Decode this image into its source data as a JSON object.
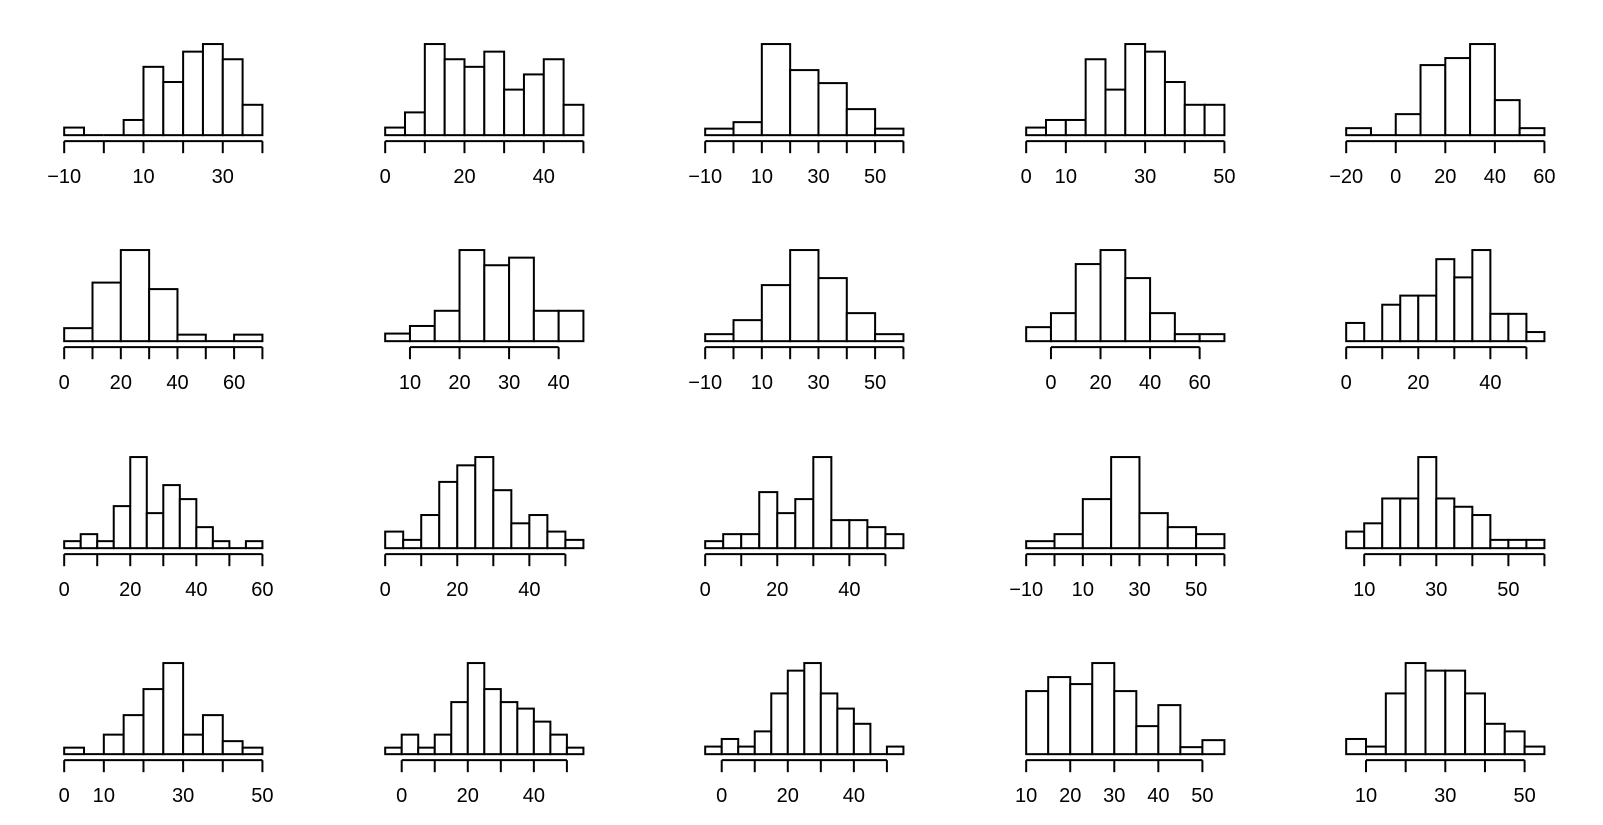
{
  "figure": {
    "background": "#ffffff",
    "bar_fill": "#ffffff",
    "bar_stroke": "#000000",
    "axis_color": "#000000",
    "text_color": "#000000"
  },
  "chart_data": {
    "type": "bar",
    "subtype": "histogram-small-multiples",
    "title": "",
    "xlabel": "",
    "ylabel": "",
    "grid": false,
    "legend": false,
    "rows": 4,
    "cols": 5,
    "histograms": [
      {
        "row": 1,
        "col": 1,
        "bin_start": -10,
        "bin_width": 5,
        "counts": [
          1,
          0,
          0,
          2,
          9,
          7,
          11,
          12,
          10,
          4
        ],
        "ticks": [
          -10,
          0,
          10,
          20,
          30,
          40
        ],
        "tick_labels": [
          "−10",
          "",
          "10",
          "",
          "30",
          ""
        ]
      },
      {
        "row": 1,
        "col": 2,
        "bin_start": 0,
        "bin_width": 5,
        "counts": [
          1,
          3,
          12,
          10,
          9,
          11,
          6,
          8,
          10,
          4
        ],
        "ticks": [
          0,
          10,
          20,
          30,
          40,
          50
        ],
        "tick_labels": [
          "0",
          "",
          "20",
          "",
          "40",
          ""
        ]
      },
      {
        "row": 1,
        "col": 3,
        "bin_start": -10,
        "bin_width": 10,
        "counts": [
          1,
          2,
          14,
          10,
          8,
          4,
          1
        ],
        "ticks": [
          -10,
          0,
          10,
          20,
          30,
          40,
          50,
          60
        ],
        "tick_labels": [
          "−10",
          "",
          "10",
          "",
          "30",
          "",
          "50",
          ""
        ]
      },
      {
        "row": 1,
        "col": 4,
        "bin_start": 0,
        "bin_width": 5,
        "counts": [
          1,
          2,
          2,
          10,
          6,
          12,
          11,
          7,
          4,
          4
        ],
        "ticks": [
          0,
          10,
          20,
          30,
          40,
          50
        ],
        "tick_labels": [
          "0",
          "10",
          "",
          "30",
          "",
          "50"
        ]
      },
      {
        "row": 1,
        "col": 5,
        "bin_start": -20,
        "bin_width": 10,
        "counts": [
          1,
          0,
          3,
          10,
          11,
          13,
          5,
          1
        ],
        "ticks": [
          -20,
          0,
          20,
          40,
          60
        ],
        "tick_labels": [
          "−20",
          "0",
          "20",
          "40",
          "60"
        ]
      },
      {
        "row": 2,
        "col": 1,
        "bin_start": 0,
        "bin_width": 10,
        "counts": [
          2,
          9,
          14,
          8,
          1,
          0,
          1
        ],
        "ticks": [
          0,
          10,
          20,
          30,
          40,
          50,
          60,
          70
        ],
        "tick_labels": [
          "0",
          "",
          "20",
          "",
          "40",
          "",
          "60",
          ""
        ]
      },
      {
        "row": 2,
        "col": 2,
        "bin_start": 5,
        "bin_width": 5,
        "counts": [
          1,
          2,
          4,
          12,
          10,
          11,
          4,
          4
        ],
        "ticks": [
          10,
          20,
          30,
          40
        ],
        "tick_labels": [
          "10",
          "20",
          "30",
          "40"
        ]
      },
      {
        "row": 2,
        "col": 3,
        "bin_start": -10,
        "bin_width": 10,
        "counts": [
          1,
          3,
          8,
          13,
          9,
          4,
          1
        ],
        "ticks": [
          -10,
          0,
          10,
          20,
          30,
          40,
          50,
          60
        ],
        "tick_labels": [
          "−10",
          "",
          "10",
          "",
          "30",
          "",
          "50",
          ""
        ]
      },
      {
        "row": 2,
        "col": 4,
        "bin_start": -10,
        "bin_width": 10,
        "counts": [
          2,
          4,
          11,
          13,
          9,
          4,
          1,
          1
        ],
        "ticks": [
          0,
          20,
          40,
          60
        ],
        "tick_labels": [
          "0",
          "20",
          "40",
          "60"
        ]
      },
      {
        "row": 2,
        "col": 5,
        "bin_start": 0,
        "bin_width": 5,
        "counts": [
          2,
          0,
          4,
          5,
          5,
          9,
          7,
          10,
          3,
          3,
          1
        ],
        "ticks": [
          0,
          10,
          20,
          30,
          40,
          50
        ],
        "tick_labels": [
          "0",
          "",
          "20",
          "",
          "40",
          ""
        ]
      },
      {
        "row": 3,
        "col": 1,
        "bin_start": 0,
        "bin_width": 5,
        "counts": [
          1,
          2,
          1,
          6,
          13,
          5,
          9,
          7,
          3,
          1,
          0,
          1
        ],
        "ticks": [
          0,
          10,
          20,
          30,
          40,
          50,
          60
        ],
        "tick_labels": [
          "0",
          "",
          "20",
          "",
          "40",
          "",
          "60"
        ]
      },
      {
        "row": 3,
        "col": 2,
        "bin_start": 0,
        "bin_width": 5,
        "counts": [
          2,
          1,
          4,
          8,
          10,
          11,
          7,
          3,
          4,
          2,
          1
        ],
        "ticks": [
          0,
          10,
          20,
          30,
          40,
          50
        ],
        "tick_labels": [
          "0",
          "",
          "20",
          "",
          "40",
          ""
        ]
      },
      {
        "row": 3,
        "col": 3,
        "bin_start": 0,
        "bin_width": 5,
        "counts": [
          1,
          2,
          2,
          8,
          5,
          7,
          13,
          4,
          4,
          3,
          2
        ],
        "ticks": [
          0,
          10,
          20,
          30,
          40,
          50
        ],
        "tick_labels": [
          "0",
          "",
          "20",
          "",
          "40",
          ""
        ]
      },
      {
        "row": 3,
        "col": 4,
        "bin_start": -10,
        "bin_width": 10,
        "counts": [
          1,
          2,
          7,
          13,
          5,
          3,
          2
        ],
        "ticks": [
          -10,
          0,
          10,
          20,
          30,
          40,
          50,
          60
        ],
        "tick_labels": [
          "−10",
          "",
          "10",
          "",
          "30",
          "",
          "50",
          ""
        ]
      },
      {
        "row": 3,
        "col": 5,
        "bin_start": 5,
        "bin_width": 5,
        "counts": [
          2,
          3,
          6,
          6,
          11,
          6,
          5,
          4,
          1,
          1,
          1
        ],
        "ticks": [
          10,
          20,
          30,
          40,
          50,
          60
        ],
        "tick_labels": [
          "10",
          "",
          "30",
          "",
          "50",
          ""
        ]
      },
      {
        "row": 4,
        "col": 1,
        "bin_start": 0,
        "bin_width": 5,
        "counts": [
          1,
          0,
          3,
          6,
          10,
          14,
          3,
          6,
          2,
          1
        ],
        "ticks": [
          0,
          10,
          20,
          30,
          40,
          50
        ],
        "tick_labels": [
          "0",
          "10",
          "",
          "30",
          "",
          "50"
        ]
      },
      {
        "row": 4,
        "col": 2,
        "bin_start": -5,
        "bin_width": 5,
        "counts": [
          1,
          3,
          1,
          3,
          8,
          14,
          10,
          8,
          7,
          5,
          3,
          1
        ],
        "ticks": [
          0,
          10,
          20,
          30,
          40,
          50
        ],
        "tick_labels": [
          "0",
          "",
          "20",
          "",
          "40",
          ""
        ]
      },
      {
        "row": 4,
        "col": 3,
        "bin_start": -5,
        "bin_width": 5,
        "counts": [
          1,
          2,
          1,
          3,
          8,
          11,
          12,
          8,
          6,
          4,
          0,
          1
        ],
        "ticks": [
          0,
          10,
          20,
          30,
          40,
          50
        ],
        "tick_labels": [
          "0",
          "",
          "20",
          "",
          "40",
          ""
        ]
      },
      {
        "row": 4,
        "col": 4,
        "bin_start": 10,
        "bin_width": 5,
        "counts": [
          9,
          11,
          10,
          13,
          9,
          4,
          7,
          1,
          2
        ],
        "ticks": [
          10,
          20,
          30,
          40,
          50
        ],
        "tick_labels": [
          "10",
          "20",
          "30",
          "40",
          "50"
        ]
      },
      {
        "row": 4,
        "col": 5,
        "bin_start": 5,
        "bin_width": 5,
        "counts": [
          2,
          1,
          8,
          12,
          11,
          11,
          8,
          4,
          3,
          1
        ],
        "ticks": [
          10,
          20,
          30,
          40,
          50
        ],
        "tick_labels": [
          "10",
          "",
          "30",
          "",
          "50"
        ]
      }
    ]
  }
}
